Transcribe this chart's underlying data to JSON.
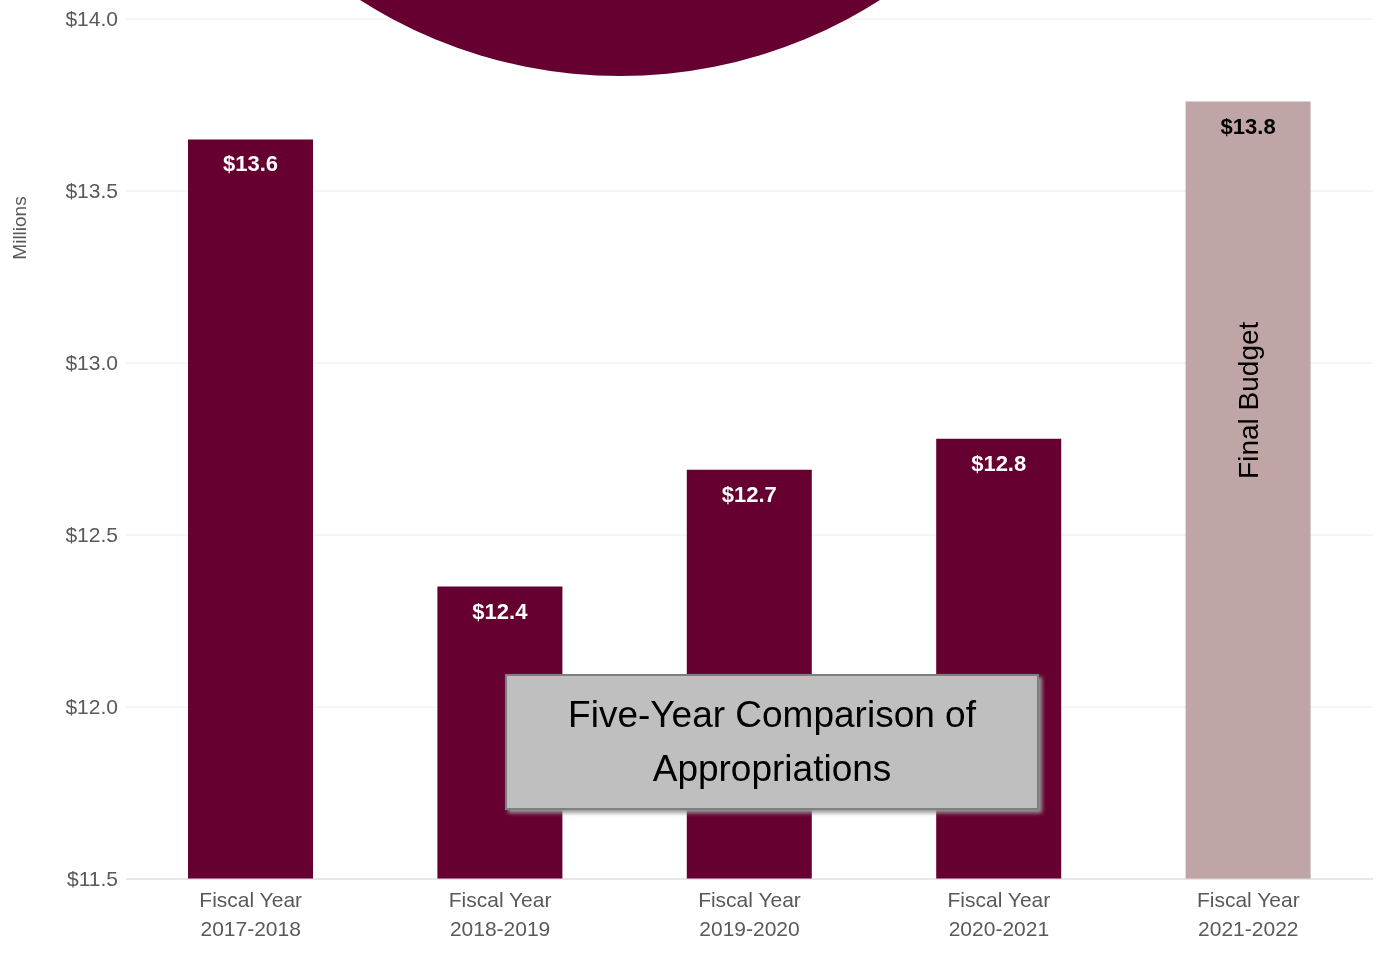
{
  "chart_data": {
    "type": "bar",
    "title": "Five-Year Comparison of Appropriations",
    "ylabel": "Millions",
    "categories": [
      "Fiscal Year\n2017-2018",
      "Fiscal Year\n2018-2019",
      "Fiscal Year\n2019-2020",
      "Fiscal Year\n2020-2021",
      "Fiscal Year\n2021-2022"
    ],
    "values": [
      13.65,
      12.35,
      12.69,
      12.78,
      13.76
    ],
    "colors": [
      "#650030",
      "#650030",
      "#650030",
      "#650030",
      "#bfa5a5"
    ],
    "value_labels": [
      "$13.6",
      "$12.4",
      "$12.7",
      "$12.8",
      "$13.8"
    ],
    "annotations": [
      "Final Budget"
    ],
    "ylim": [
      11.5,
      14.0
    ],
    "yticks": [
      {
        "value": 11.5,
        "label": "$11.5"
      },
      {
        "value": 12.0,
        "label": "$12.0"
      },
      {
        "value": 12.5,
        "label": "$12.5"
      },
      {
        "value": 13.0,
        "label": "$13.0"
      },
      {
        "value": 13.5,
        "label": "$13.5"
      },
      {
        "value": 14.0,
        "label": "$14.0"
      }
    ],
    "grid": "y",
    "legend": false
  }
}
